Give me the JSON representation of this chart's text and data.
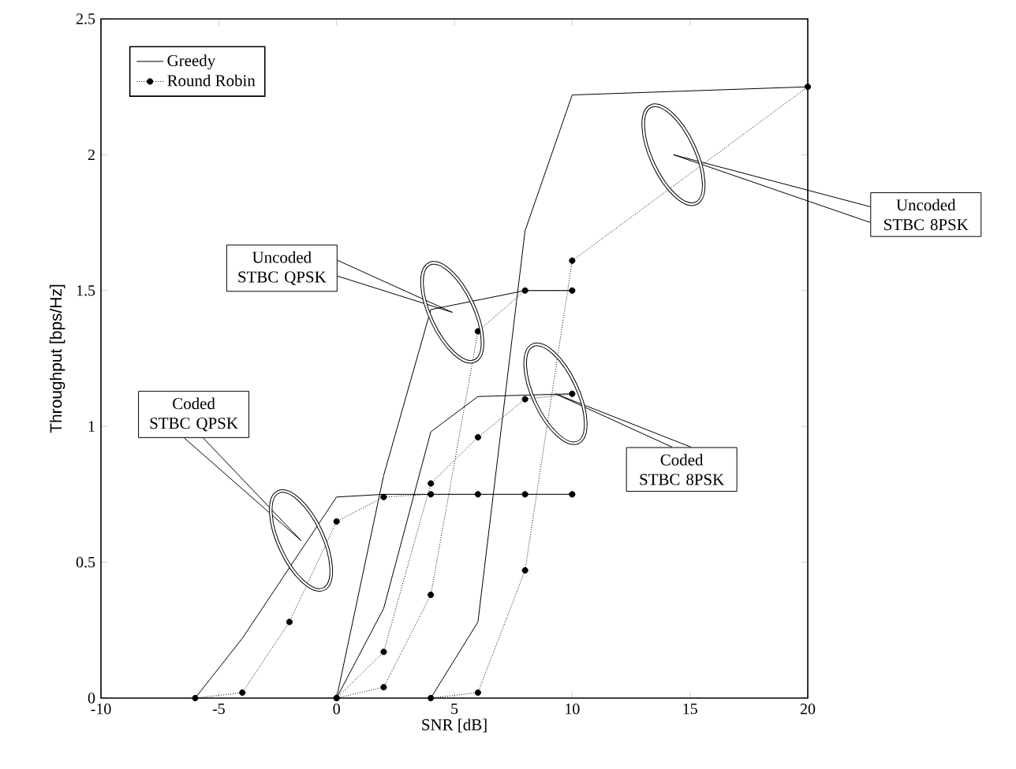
{
  "chart_data": {
    "type": "line",
    "xlabel": "SNR [dB]",
    "ylabel": "Throughput [bps/Hz]",
    "xlim": [
      -10,
      20
    ],
    "xticks": [
      -10,
      -5,
      0,
      5,
      10,
      15,
      20
    ],
    "ylim": [
      0,
      2.5
    ],
    "yticks": [
      0,
      0.5,
      1,
      1.5,
      2,
      2.5
    ],
    "grid": false,
    "legend": "top left",
    "series": [
      {
        "name": "Greedy",
        "color": "#000000",
        "line_style": "solid",
        "marker": "none",
        "x": [
          -6,
          -4,
          0,
          2,
          10
        ],
        "values": [
          0,
          0.22,
          0.74,
          0.75,
          0.75
        ]
      },
      {
        "name": "Round Robin",
        "color": "#000000",
        "line_style": "dotted",
        "marker": "circle",
        "x": [
          -6,
          -4,
          -2,
          0,
          2,
          4,
          6,
          8,
          10
        ],
        "values": [
          0,
          0.02,
          0.28,
          0.65,
          0.74,
          0.75,
          0.75,
          0.75,
          0.75
        ]
      },
      {
        "color": "#000000",
        "line_style": "solid",
        "marker": "none",
        "x": [
          0,
          2,
          4,
          8,
          10
        ],
        "values": [
          0,
          0.82,
          1.43,
          1.5,
          1.5
        ]
      },
      {
        "color": "#000000",
        "line_style": "dotted",
        "marker": "circle",
        "x": [
          0,
          2,
          4,
          6,
          8,
          10
        ],
        "values": [
          0,
          0.04,
          0.38,
          1.35,
          1.5,
          1.5
        ]
      },
      {
        "color": "#000000",
        "line_style": "solid",
        "marker": "none",
        "x": [
          0,
          2,
          4,
          6,
          10
        ],
        "values": [
          0,
          0.33,
          0.98,
          1.11,
          1.12
        ]
      },
      {
        "color": "#000000",
        "line_style": "dotted",
        "marker": "circle",
        "x": [
          0,
          2,
          4,
          6,
          8,
          10
        ],
        "values": [
          0,
          0.17,
          0.79,
          0.96,
          1.1,
          1.12
        ]
      },
      {
        "color": "#000000",
        "line_style": "solid",
        "marker": "none",
        "x": [
          4,
          6,
          8,
          10,
          20
        ],
        "values": [
          0,
          0.28,
          1.72,
          2.22,
          2.25
        ]
      },
      {
        "color": "#000000",
        "line_style": "dotted",
        "marker": "circle",
        "x": [
          4,
          6,
          8,
          10,
          20
        ],
        "values": [
          0,
          0.02,
          0.47,
          1.61,
          2.25
        ]
      }
    ],
    "annotations": [
      "Coded STBC QPSK",
      "Uncoded STBC QPSK",
      "Coded STBC 8PSK",
      "Uncoded STBC 8PSK"
    ]
  }
}
